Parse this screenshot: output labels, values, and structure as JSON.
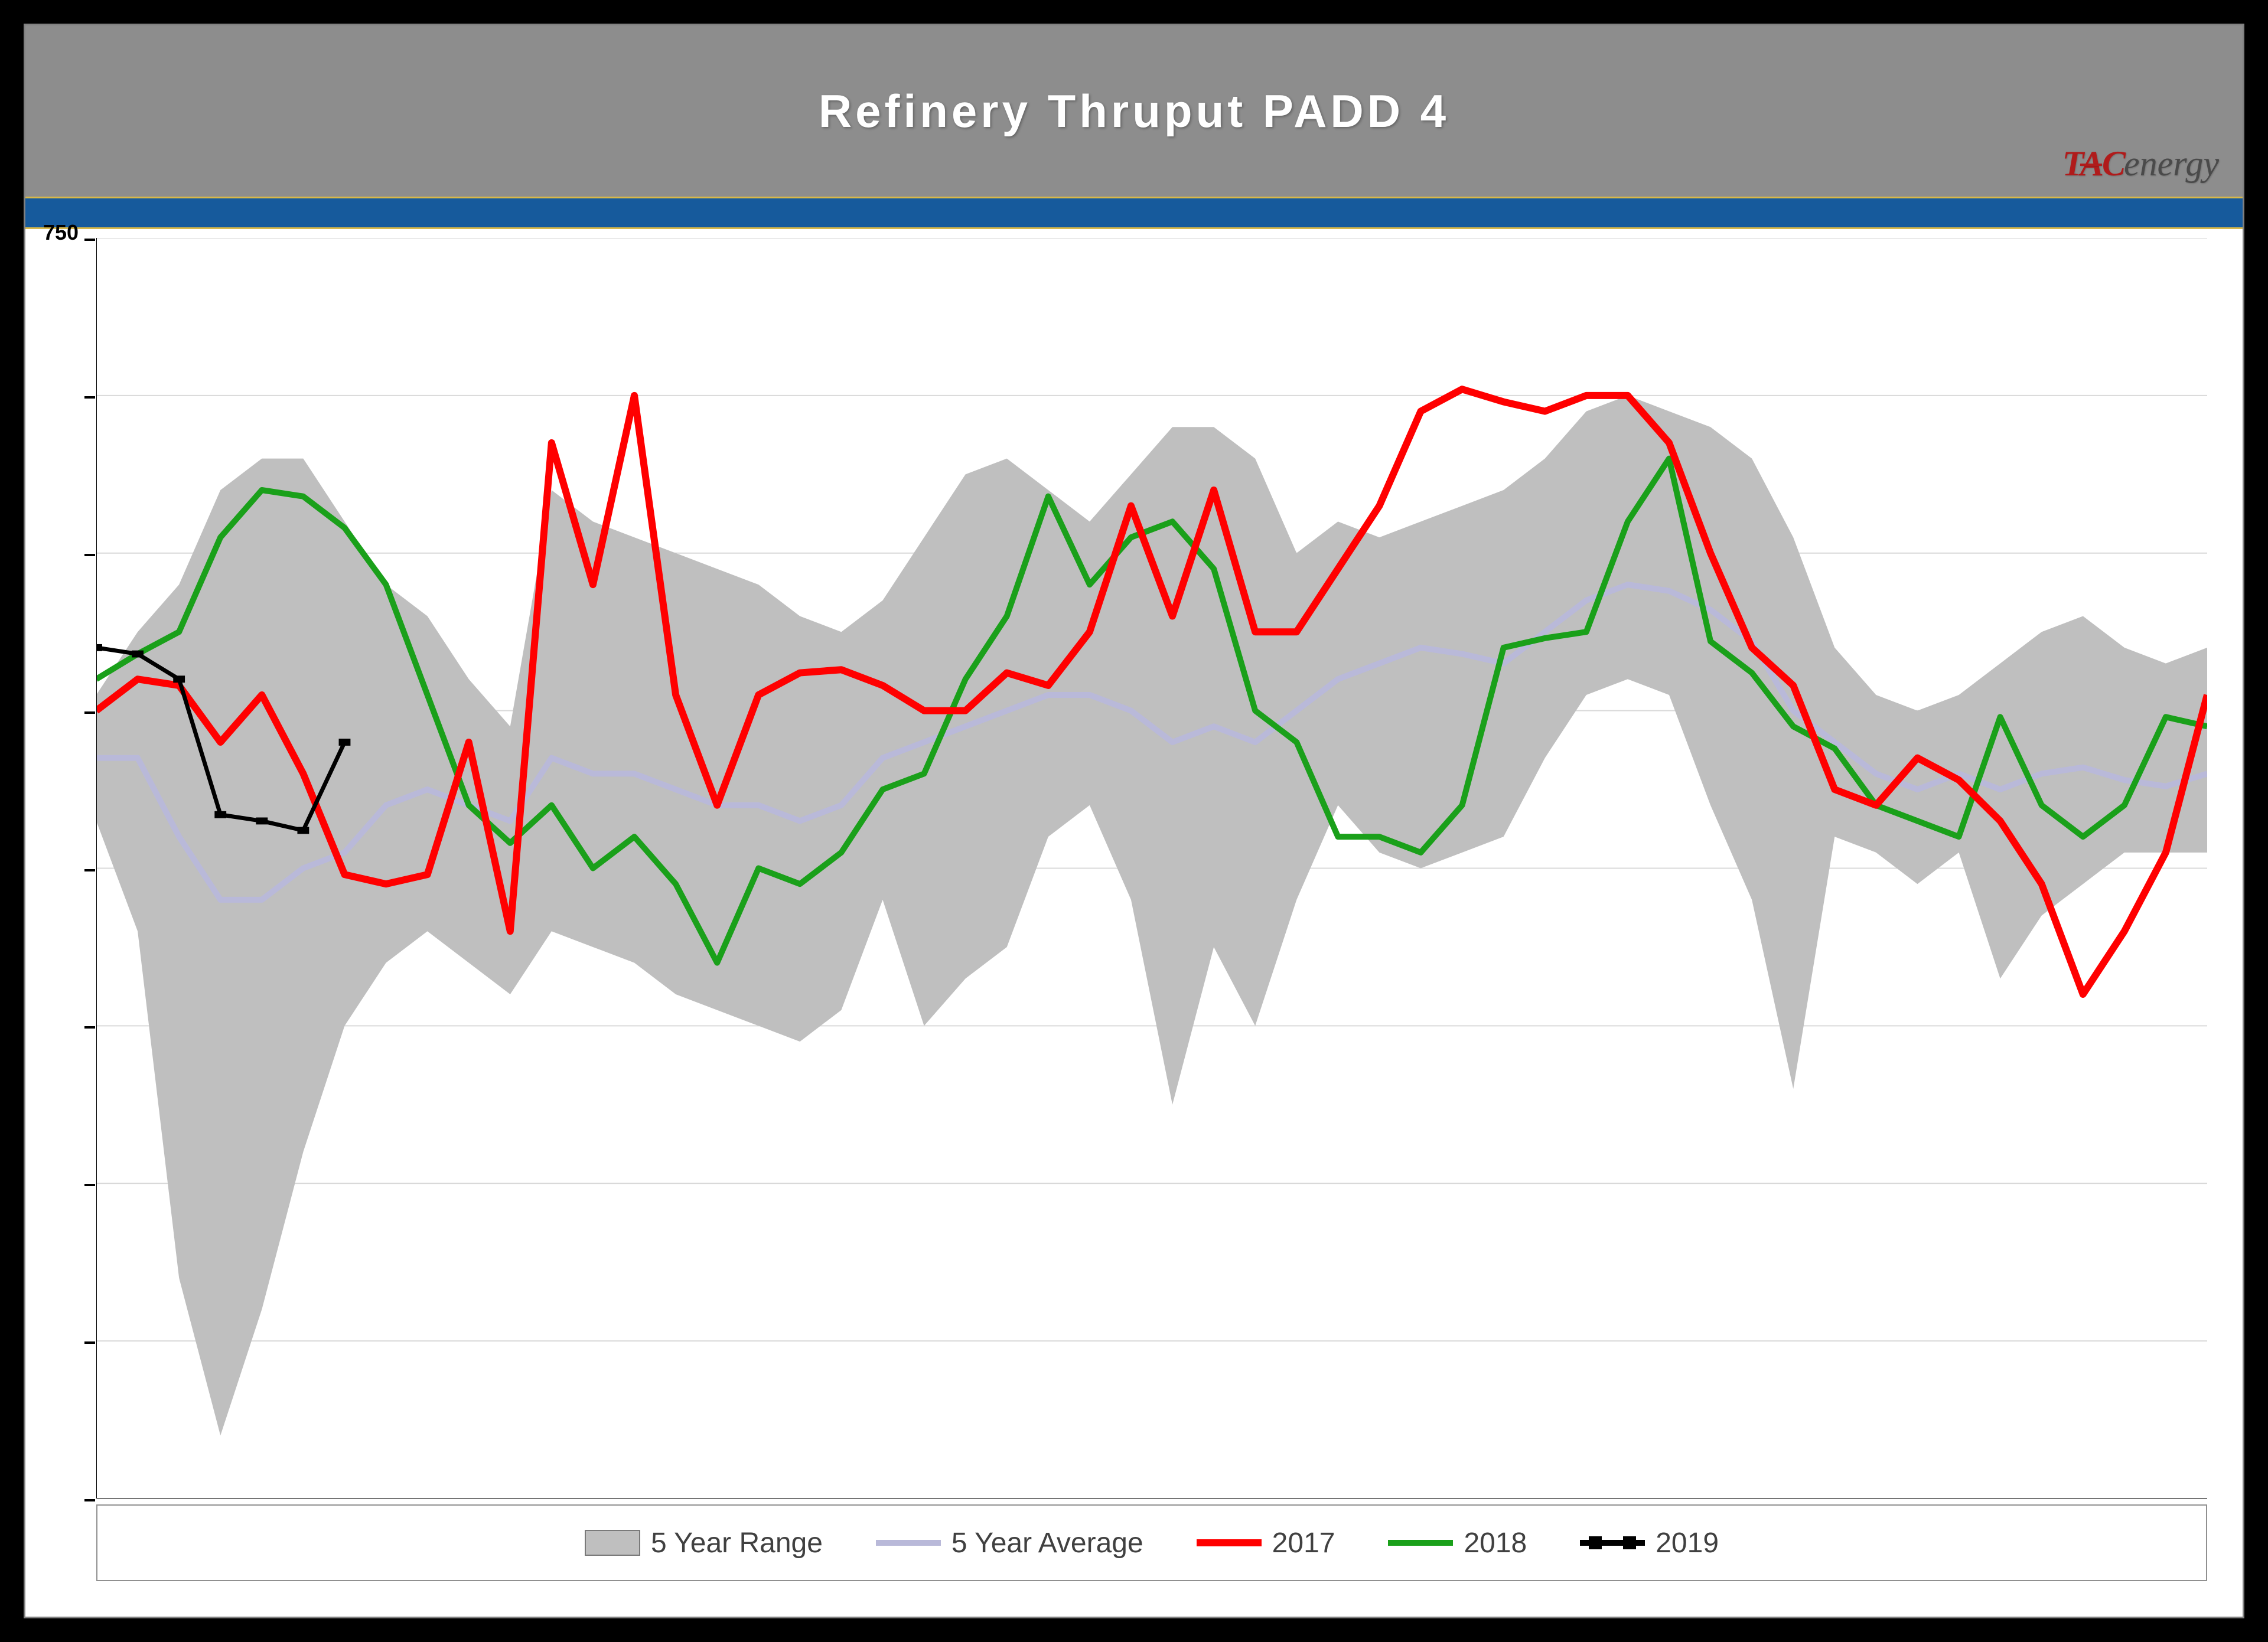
{
  "chart": {
    "type": "line",
    "title": "Refinery Thruput PADD 4",
    "title_fontsize": 78,
    "title_color": "#ffffff",
    "title_band_color": "#8d8d8d",
    "blue_band_color": "#165a9c",
    "blue_band_border": "#d7b84a",
    "background_color": "#ffffff",
    "outer_background": "#000000",
    "plot_border_color": "#808080",
    "y_top_tick_label": "750",
    "ylim": [
      350,
      750
    ],
    "y_ticks": [
      350,
      400,
      450,
      500,
      550,
      600,
      650,
      700,
      750
    ],
    "gridline_color": "#d9d9d9",
    "gridline_width": 2,
    "x_points": 52,
    "logo": {
      "part1": "TAC",
      "part2": "energy",
      "part1_color": "#b01b1b",
      "part2_color": "#4a4a4a"
    },
    "legend": {
      "items": [
        {
          "label": "5 Year Range",
          "type": "area",
          "color": "#bfbfbf",
          "border": "#7a7a7a"
        },
        {
          "label": "5 Year Average",
          "type": "line",
          "color": "#b9b9d9",
          "width": 10
        },
        {
          "label": "2017",
          "type": "line",
          "color": "#ff0000",
          "width": 12
        },
        {
          "label": "2018",
          "type": "line",
          "color": "#1aa01a",
          "width": 10
        },
        {
          "label": "2019",
          "type": "line-markers",
          "color": "#000000",
          "width": 7,
          "marker": "square",
          "marker_size": 20
        }
      ],
      "fontsize": 48,
      "text_color": "#404040",
      "border_color": "#909090"
    },
    "series": {
      "range_high": [
        605,
        625,
        640,
        670,
        680,
        680,
        660,
        640,
        630,
        610,
        595,
        670,
        660,
        655,
        650,
        645,
        640,
        630,
        625,
        635,
        655,
        675,
        680,
        670,
        660,
        675,
        690,
        690,
        680,
        650,
        660,
        655,
        660,
        665,
        670,
        680,
        695,
        700,
        695,
        690,
        680,
        655,
        620,
        605,
        600,
        605,
        615,
        625,
        630,
        620,
        615,
        620
      ],
      "range_low": [
        565,
        530,
        420,
        370,
        410,
        460,
        500,
        520,
        530,
        520,
        510,
        530,
        525,
        520,
        510,
        505,
        500,
        495,
        505,
        540,
        500,
        515,
        525,
        560,
        570,
        540,
        475,
        525,
        500,
        540,
        570,
        555,
        550,
        555,
        560,
        585,
        605,
        610,
        605,
        570,
        540,
        480,
        560,
        555,
        545,
        555,
        515,
        535,
        545,
        555,
        555,
        555
      ],
      "avg": [
        585,
        585,
        560,
        540,
        540,
        550,
        555,
        570,
        575,
        570,
        565,
        585,
        580,
        580,
        575,
        570,
        570,
        565,
        570,
        585,
        590,
        595,
        600,
        605,
        605,
        600,
        590,
        595,
        590,
        600,
        610,
        615,
        620,
        618,
        615,
        625,
        635,
        640,
        638,
        632,
        622,
        600,
        590,
        580,
        575,
        580,
        575,
        580,
        582,
        578,
        576,
        580
      ],
      "y2017": [
        600,
        610,
        608,
        590,
        605,
        580,
        548,
        545,
        548,
        590,
        530,
        685,
        640,
        700,
        605,
        570,
        605,
        612,
        613,
        608,
        600,
        600,
        612,
        608,
        625,
        665,
        630,
        670,
        625,
        625,
        645,
        665,
        695,
        702,
        698,
        695,
        700,
        700,
        685,
        650,
        620,
        608,
        575,
        570,
        585,
        578,
        565,
        545,
        510,
        530,
        555,
        605
      ],
      "y2018": [
        610,
        618,
        625,
        655,
        670,
        668,
        658,
        640,
        605,
        570,
        558,
        570,
        550,
        560,
        545,
        520,
        550,
        545,
        555,
        575,
        580,
        610,
        630,
        668,
        640,
        655,
        660,
        645,
        600,
        590,
        560,
        560,
        555,
        570,
        620,
        623,
        625,
        660,
        680,
        622,
        612,
        595,
        588,
        570,
        565,
        560,
        598,
        570,
        560,
        570,
        598,
        595
      ],
      "y2019": [
        620,
        618,
        610,
        567,
        565,
        562,
        590
      ]
    },
    "styles": {
      "range": {
        "fill": "#bfbfbf",
        "fill_opacity": 1.0,
        "stroke": "none"
      },
      "avg": {
        "stroke": "#b9b9d9",
        "stroke_width": 10
      },
      "y2017": {
        "stroke": "#ff0000",
        "stroke_width": 12
      },
      "y2018": {
        "stroke": "#1aa01a",
        "stroke_width": 10
      },
      "y2019": {
        "stroke": "#000000",
        "stroke_width": 7,
        "marker": "square",
        "marker_size": 20,
        "marker_fill": "#000000"
      }
    }
  }
}
